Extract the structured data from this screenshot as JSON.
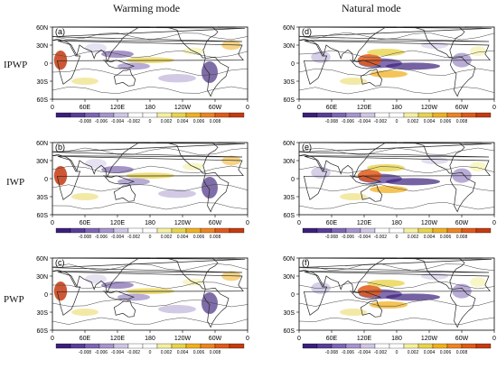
{
  "column_titles": [
    "Warming mode",
    "Natural mode"
  ],
  "row_labels": [
    "IPWP",
    "IWP",
    "PWP"
  ],
  "panels": [
    {
      "label": "(a)"
    },
    {
      "label": "(d)"
    },
    {
      "label": "(b)"
    },
    {
      "label": "(e)"
    },
    {
      "label": "(c)"
    },
    {
      "label": "(f)"
    }
  ],
  "lat_ticks": [
    "60N",
    "30N",
    "0",
    "30S",
    "60S"
  ],
  "lon_ticks": [
    "0",
    "60E",
    "120E",
    "180",
    "120W",
    "60W",
    "0"
  ],
  "colorbar": {
    "ticks": [
      "-0.008",
      "-0.006",
      "-0.004",
      "-0.002",
      "0",
      "0.002",
      "0.004",
      "0.006",
      "0.008"
    ],
    "colors": [
      "#3b1f7a",
      "#5a3d98",
      "#7d66b4",
      "#a595cc",
      "#cfc6e4",
      "#ffffff",
      "#ffffff",
      "#f4f0a0",
      "#e8d44d",
      "#f0b020",
      "#ec8424",
      "#e05a1a",
      "#c43a10"
    ]
  }
}
